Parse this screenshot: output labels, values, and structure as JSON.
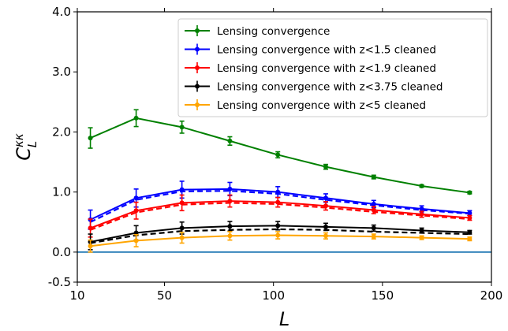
{
  "chart_data": {
    "type": "line",
    "title": "",
    "xlabel": "L",
    "ylabel_main": "C",
    "ylabel_super": "κκ",
    "ylabel_sub": "L",
    "xlim": [
      10,
      200
    ],
    "ylim": [
      -0.5,
      4.0
    ],
    "x_ticks": [
      10,
      50,
      100,
      150,
      200
    ],
    "y_ticks": [
      -0.5,
      0.0,
      1.0,
      2.0,
      3.0,
      4.0
    ],
    "y_tick_labels": [
      "-0.5",
      "0.0",
      "1.0",
      "2.0",
      "3.0",
      "4.0"
    ],
    "grid": false,
    "legend_position": "upper-right",
    "reference_line": {
      "y": 0.0,
      "color": "#1f77b4"
    },
    "x": [
      16,
      37,
      58,
      80,
      102,
      124,
      146,
      168,
      190
    ],
    "series": [
      {
        "name": "Lensing convergence",
        "color": "#008000",
        "values": [
          1.9,
          2.23,
          2.08,
          1.85,
          1.62,
          1.42,
          1.25,
          1.1,
          0.99
        ],
        "errors": [
          0.17,
          0.14,
          0.1,
          0.07,
          0.05,
          0.04,
          0.03,
          0.02,
          0.02
        ],
        "dashed_values": null
      },
      {
        "name": "Lensing convergence with z<1.5 cleaned",
        "color": "#0000ff",
        "values": [
          0.54,
          0.9,
          1.04,
          1.05,
          1.0,
          0.9,
          0.8,
          0.72,
          0.65
        ],
        "errors": [
          0.16,
          0.15,
          0.14,
          0.11,
          0.09,
          0.07,
          0.06,
          0.05,
          0.04
        ],
        "dashed_values": [
          0.5,
          0.87,
          1.01,
          1.02,
          0.97,
          0.87,
          0.78,
          0.7,
          0.64
        ]
      },
      {
        "name": "Lensing convergence with z<1.9 cleaned",
        "color": "#ff0000",
        "values": [
          0.4,
          0.69,
          0.82,
          0.85,
          0.83,
          0.77,
          0.7,
          0.63,
          0.57
        ],
        "errors": [
          0.15,
          0.14,
          0.13,
          0.1,
          0.08,
          0.07,
          0.06,
          0.05,
          0.04
        ],
        "dashed_values": [
          0.37,
          0.66,
          0.79,
          0.82,
          0.8,
          0.74,
          0.67,
          0.61,
          0.55
        ]
      },
      {
        "name": "Lensing convergence with z<3.75 cleaned",
        "color": "#000000",
        "values": [
          0.17,
          0.32,
          0.4,
          0.43,
          0.44,
          0.42,
          0.4,
          0.36,
          0.33
        ],
        "errors": [
          0.13,
          0.12,
          0.1,
          0.08,
          0.07,
          0.06,
          0.05,
          0.04,
          0.03
        ],
        "dashed_values": [
          0.15,
          0.28,
          0.35,
          0.37,
          0.38,
          0.37,
          0.34,
          0.32,
          0.3
        ]
      },
      {
        "name": "Lensing convergence with z<5 cleaned",
        "color": "#ffa500",
        "values": [
          0.1,
          0.19,
          0.24,
          0.27,
          0.28,
          0.27,
          0.26,
          0.24,
          0.22
        ],
        "errors": [
          0.1,
          0.1,
          0.09,
          0.07,
          0.06,
          0.05,
          0.04,
          0.03,
          0.03
        ],
        "dashed_values": null
      }
    ]
  }
}
